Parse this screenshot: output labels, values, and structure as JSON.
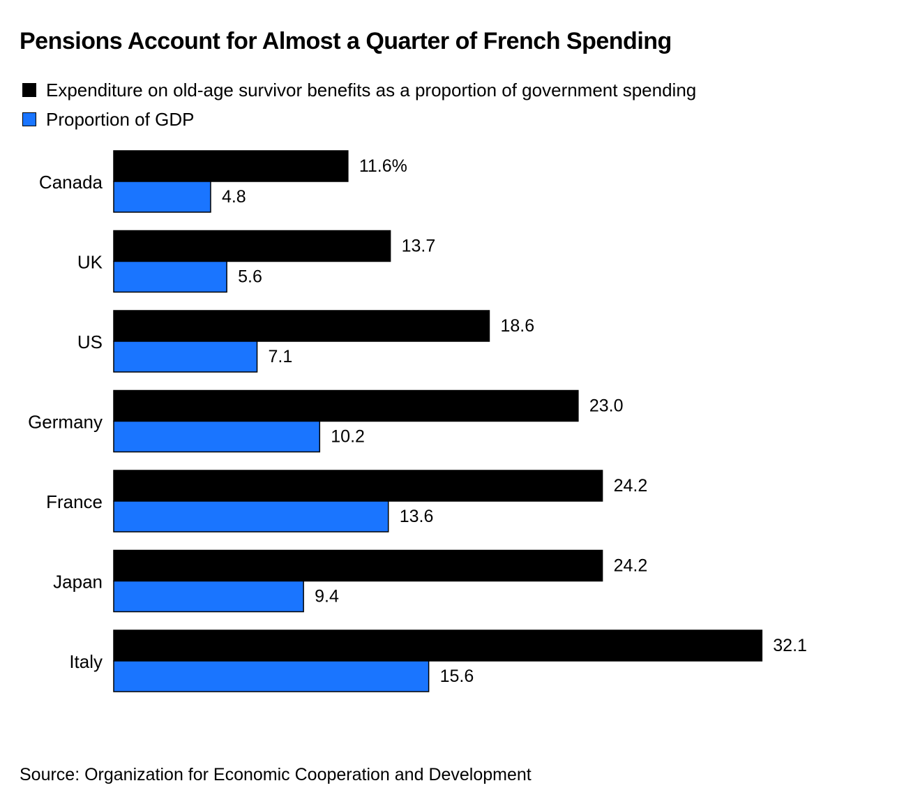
{
  "title": "Pensions Account for Almost a Quarter of French Spending",
  "source": "Source: Organization for Economic Cooperation and Development",
  "legend": [
    {
      "label": "Expenditure on old-age survivor benefits as a proportion of government spending",
      "color": "#000000"
    },
    {
      "label": "Proportion of GDP",
      "color": "#1a75ff"
    }
  ],
  "chart_data": {
    "type": "bar",
    "orientation": "horizontal",
    "categories": [
      "Canada",
      "UK",
      "US",
      "Germany",
      "France",
      "Japan",
      "Italy"
    ],
    "series": [
      {
        "name": "Expenditure on old-age survivor benefits as a proportion of government spending",
        "color": "#000000",
        "values": [
          11.6,
          13.7,
          18.6,
          23.0,
          24.2,
          24.2,
          32.1
        ],
        "labels": [
          "11.6%",
          "13.7",
          "18.6",
          "23.0",
          "24.2",
          "24.2",
          "32.1"
        ]
      },
      {
        "name": "Proportion of GDP",
        "color": "#1a75ff",
        "values": [
          4.8,
          5.6,
          7.1,
          10.2,
          13.6,
          9.4,
          15.6
        ],
        "labels": [
          "4.8",
          "5.6",
          "7.1",
          "10.2",
          "13.6",
          "9.4",
          "15.6"
        ]
      }
    ],
    "xlim": [
      0,
      35
    ],
    "grid": false,
    "legend_position": "top-left"
  }
}
